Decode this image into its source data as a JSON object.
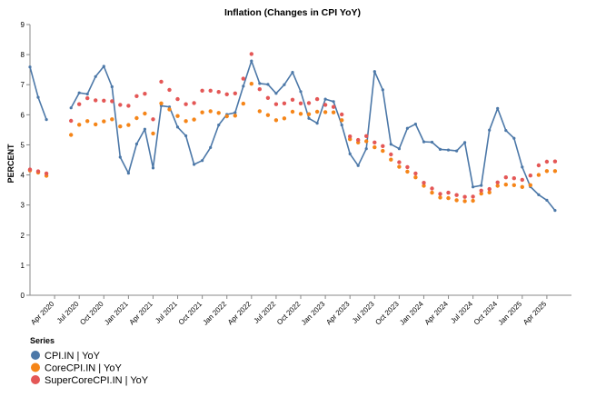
{
  "chart_data": {
    "type": "line",
    "title": "Inflation (Changes in CPI YoY)",
    "ylabel": "PERCENT",
    "xlabel": "",
    "ylim": [
      0,
      9
    ],
    "y_ticks": [
      0,
      1,
      2,
      3,
      4,
      5,
      6,
      7,
      8,
      9
    ],
    "x_range": [
      "2020-01",
      "2025-07"
    ],
    "x_ticks": [
      {
        "date": "2020-04",
        "label": "Apr 2020"
      },
      {
        "date": "2020-07",
        "label": "Jul 2020"
      },
      {
        "date": "2020-10",
        "label": "Oct 2020"
      },
      {
        "date": "2021-01",
        "label": "Jan 2021"
      },
      {
        "date": "2021-04",
        "label": "Apr 2021"
      },
      {
        "date": "2021-07",
        "label": "Jul 2021"
      },
      {
        "date": "2021-10",
        "label": "Oct 2021"
      },
      {
        "date": "2022-01",
        "label": "Jan 2022"
      },
      {
        "date": "2022-04",
        "label": "Apr 2022"
      },
      {
        "date": "2022-07",
        "label": "Jul 2022"
      },
      {
        "date": "2022-10",
        "label": "Oct 2022"
      },
      {
        "date": "2023-01",
        "label": "Jan 2023"
      },
      {
        "date": "2023-04",
        "label": "Apr 2023"
      },
      {
        "date": "2023-07",
        "label": "Jul 2023"
      },
      {
        "date": "2023-10",
        "label": "Oct 2023"
      },
      {
        "date": "2024-01",
        "label": "Jan 2024"
      },
      {
        "date": "2024-04",
        "label": "Apr 2024"
      },
      {
        "date": "2024-07",
        "label": "Jul 2024"
      },
      {
        "date": "2024-10",
        "label": "Oct 2024"
      },
      {
        "date": "2025-01",
        "label": "Jan 2025"
      },
      {
        "date": "2025-04",
        "label": "Apr 2025"
      }
    ],
    "grid": false,
    "legend": {
      "title": "Series",
      "placement": "bottom-left"
    },
    "series": [
      {
        "name": "CPI.IN | YoY",
        "color": "#4c78a8",
        "style": "line+points",
        "points": [
          [
            "2020-01",
            7.59
          ],
          [
            "2020-02",
            6.58
          ],
          [
            "2020-03",
            5.84
          ],
          [
            "2020-06",
            6.23
          ],
          [
            "2020-07",
            6.73
          ],
          [
            "2020-08",
            6.69
          ],
          [
            "2020-09",
            7.27
          ],
          [
            "2020-10",
            7.61
          ],
          [
            "2020-11",
            6.93
          ],
          [
            "2020-12",
            4.59
          ],
          [
            "2021-01",
            4.06
          ],
          [
            "2021-02",
            5.03
          ],
          [
            "2021-03",
            5.52
          ],
          [
            "2021-04",
            4.23
          ],
          [
            "2021-05",
            6.3
          ],
          [
            "2021-06",
            6.26
          ],
          [
            "2021-07",
            5.59
          ],
          [
            "2021-08",
            5.3
          ],
          [
            "2021-09",
            4.35
          ],
          [
            "2021-10",
            4.48
          ],
          [
            "2021-11",
            4.91
          ],
          [
            "2021-12",
            5.66
          ],
          [
            "2022-01",
            6.01
          ],
          [
            "2022-02",
            6.07
          ],
          [
            "2022-03",
            6.95
          ],
          [
            "2022-04",
            7.79
          ],
          [
            "2022-05",
            7.04
          ],
          [
            "2022-06",
            7.01
          ],
          [
            "2022-07",
            6.71
          ],
          [
            "2022-08",
            7.0
          ],
          [
            "2022-09",
            7.41
          ],
          [
            "2022-10",
            6.77
          ],
          [
            "2022-11",
            5.88
          ],
          [
            "2022-12",
            5.72
          ],
          [
            "2023-01",
            6.52
          ],
          [
            "2023-02",
            6.44
          ],
          [
            "2023-03",
            5.66
          ],
          [
            "2023-04",
            4.7
          ],
          [
            "2023-05",
            4.31
          ],
          [
            "2023-06",
            4.87
          ],
          [
            "2023-07",
            7.44
          ],
          [
            "2023-08",
            6.83
          ],
          [
            "2023-09",
            5.02
          ],
          [
            "2023-10",
            4.87
          ],
          [
            "2023-11",
            5.55
          ],
          [
            "2023-12",
            5.69
          ],
          [
            "2024-01",
            5.1
          ],
          [
            "2024-02",
            5.09
          ],
          [
            "2024-03",
            4.85
          ],
          [
            "2024-04",
            4.83
          ],
          [
            "2024-05",
            4.8
          ],
          [
            "2024-06",
            5.08
          ],
          [
            "2024-07",
            3.6
          ],
          [
            "2024-08",
            3.65
          ],
          [
            "2024-09",
            5.49
          ],
          [
            "2024-10",
            6.21
          ],
          [
            "2024-11",
            5.48
          ],
          [
            "2024-12",
            5.22
          ],
          [
            "2025-01",
            4.26
          ],
          [
            "2025-02",
            3.61
          ],
          [
            "2025-03",
            3.34
          ],
          [
            "2025-04",
            3.16
          ],
          [
            "2025-05",
            2.82
          ]
        ]
      },
      {
        "name": "CoreCPI.IN | YoY",
        "color": "#f58518",
        "style": "points",
        "points": [
          [
            "2020-01",
            4.15
          ],
          [
            "2020-02",
            4.08
          ],
          [
            "2020-03",
            3.97
          ],
          [
            "2020-06",
            5.33
          ],
          [
            "2020-07",
            5.67
          ],
          [
            "2020-08",
            5.79
          ],
          [
            "2020-09",
            5.68
          ],
          [
            "2020-10",
            5.78
          ],
          [
            "2020-11",
            5.85
          ],
          [
            "2020-12",
            5.61
          ],
          [
            "2021-01",
            5.66
          ],
          [
            "2021-02",
            5.89
          ],
          [
            "2021-03",
            6.04
          ],
          [
            "2021-04",
            5.38
          ],
          [
            "2021-05",
            6.38
          ],
          [
            "2021-06",
            6.18
          ],
          [
            "2021-07",
            5.96
          ],
          [
            "2021-08",
            5.79
          ],
          [
            "2021-09",
            5.84
          ],
          [
            "2021-10",
            6.08
          ],
          [
            "2021-11",
            6.12
          ],
          [
            "2021-12",
            6.06
          ],
          [
            "2022-01",
            5.95
          ],
          [
            "2022-02",
            5.97
          ],
          [
            "2022-03",
            6.37
          ],
          [
            "2022-04",
            7.03
          ],
          [
            "2022-05",
            6.12
          ],
          [
            "2022-06",
            5.99
          ],
          [
            "2022-07",
            5.82
          ],
          [
            "2022-08",
            5.88
          ],
          [
            "2022-09",
            6.1
          ],
          [
            "2022-10",
            6.03
          ],
          [
            "2022-11",
            6.02
          ],
          [
            "2022-12",
            6.1
          ],
          [
            "2023-01",
            6.09
          ],
          [
            "2023-02",
            6.08
          ],
          [
            "2023-03",
            5.82
          ],
          [
            "2023-04",
            5.19
          ],
          [
            "2023-05",
            5.08
          ],
          [
            "2023-06",
            5.12
          ],
          [
            "2023-07",
            4.92
          ],
          [
            "2023-08",
            4.8
          ],
          [
            "2023-09",
            4.51
          ],
          [
            "2023-10",
            4.27
          ],
          [
            "2023-11",
            4.11
          ],
          [
            "2023-12",
            3.92
          ],
          [
            "2024-01",
            3.64
          ],
          [
            "2024-02",
            3.41
          ],
          [
            "2024-03",
            3.25
          ],
          [
            "2024-04",
            3.23
          ],
          [
            "2024-05",
            3.16
          ],
          [
            "2024-06",
            3.13
          ],
          [
            "2024-07",
            3.14
          ],
          [
            "2024-08",
            3.38
          ],
          [
            "2024-09",
            3.42
          ],
          [
            "2024-10",
            3.64
          ],
          [
            "2024-11",
            3.68
          ],
          [
            "2024-12",
            3.66
          ],
          [
            "2025-01",
            3.6
          ],
          [
            "2025-02",
            3.66
          ],
          [
            "2025-03",
            4.0
          ],
          [
            "2025-04",
            4.13
          ],
          [
            "2025-05",
            4.13
          ]
        ]
      },
      {
        "name": "SuperCoreCPI.IN | YoY",
        "color": "#e45756",
        "style": "points",
        "points": [
          [
            "2020-01",
            4.18
          ],
          [
            "2020-02",
            4.12
          ],
          [
            "2020-03",
            4.05
          ],
          [
            "2020-06",
            5.8
          ],
          [
            "2020-07",
            6.35
          ],
          [
            "2020-08",
            6.55
          ],
          [
            "2020-09",
            6.48
          ],
          [
            "2020-10",
            6.47
          ],
          [
            "2020-11",
            6.45
          ],
          [
            "2020-12",
            6.33
          ],
          [
            "2021-01",
            6.3
          ],
          [
            "2021-02",
            6.62
          ],
          [
            "2021-03",
            6.7
          ],
          [
            "2021-04",
            5.85
          ],
          [
            "2021-05",
            7.1
          ],
          [
            "2021-06",
            6.83
          ],
          [
            "2021-07",
            6.52
          ],
          [
            "2021-08",
            6.35
          ],
          [
            "2021-09",
            6.39
          ],
          [
            "2021-10",
            6.8
          ],
          [
            "2021-11",
            6.8
          ],
          [
            "2021-12",
            6.76
          ],
          [
            "2022-01",
            6.68
          ],
          [
            "2022-02",
            6.71
          ],
          [
            "2022-03",
            7.2
          ],
          [
            "2022-04",
            8.02
          ],
          [
            "2022-05",
            6.85
          ],
          [
            "2022-06",
            6.56
          ],
          [
            "2022-07",
            6.35
          ],
          [
            "2022-08",
            6.38
          ],
          [
            "2022-09",
            6.5
          ],
          [
            "2022-10",
            6.38
          ],
          [
            "2022-11",
            6.39
          ],
          [
            "2022-12",
            6.52
          ],
          [
            "2023-01",
            6.33
          ],
          [
            "2023-02",
            6.26
          ],
          [
            "2023-03",
            6.01
          ],
          [
            "2023-04",
            5.28
          ],
          [
            "2023-05",
            5.16
          ],
          [
            "2023-06",
            5.29
          ],
          [
            "2023-07",
            5.08
          ],
          [
            "2023-08",
            4.96
          ],
          [
            "2023-09",
            4.68
          ],
          [
            "2023-10",
            4.42
          ],
          [
            "2023-11",
            4.26
          ],
          [
            "2023-12",
            4.05
          ],
          [
            "2024-01",
            3.74
          ],
          [
            "2024-02",
            3.55
          ],
          [
            "2024-03",
            3.37
          ],
          [
            "2024-04",
            3.41
          ],
          [
            "2024-05",
            3.33
          ],
          [
            "2024-06",
            3.27
          ],
          [
            "2024-07",
            3.28
          ],
          [
            "2024-08",
            3.48
          ],
          [
            "2024-09",
            3.53
          ],
          [
            "2024-10",
            3.75
          ],
          [
            "2024-11",
            3.92
          ],
          [
            "2024-12",
            3.89
          ],
          [
            "2025-01",
            3.84
          ],
          [
            "2025-02",
            3.98
          ],
          [
            "2025-03",
            4.32
          ],
          [
            "2025-04",
            4.44
          ],
          [
            "2025-05",
            4.45
          ]
        ]
      }
    ]
  }
}
